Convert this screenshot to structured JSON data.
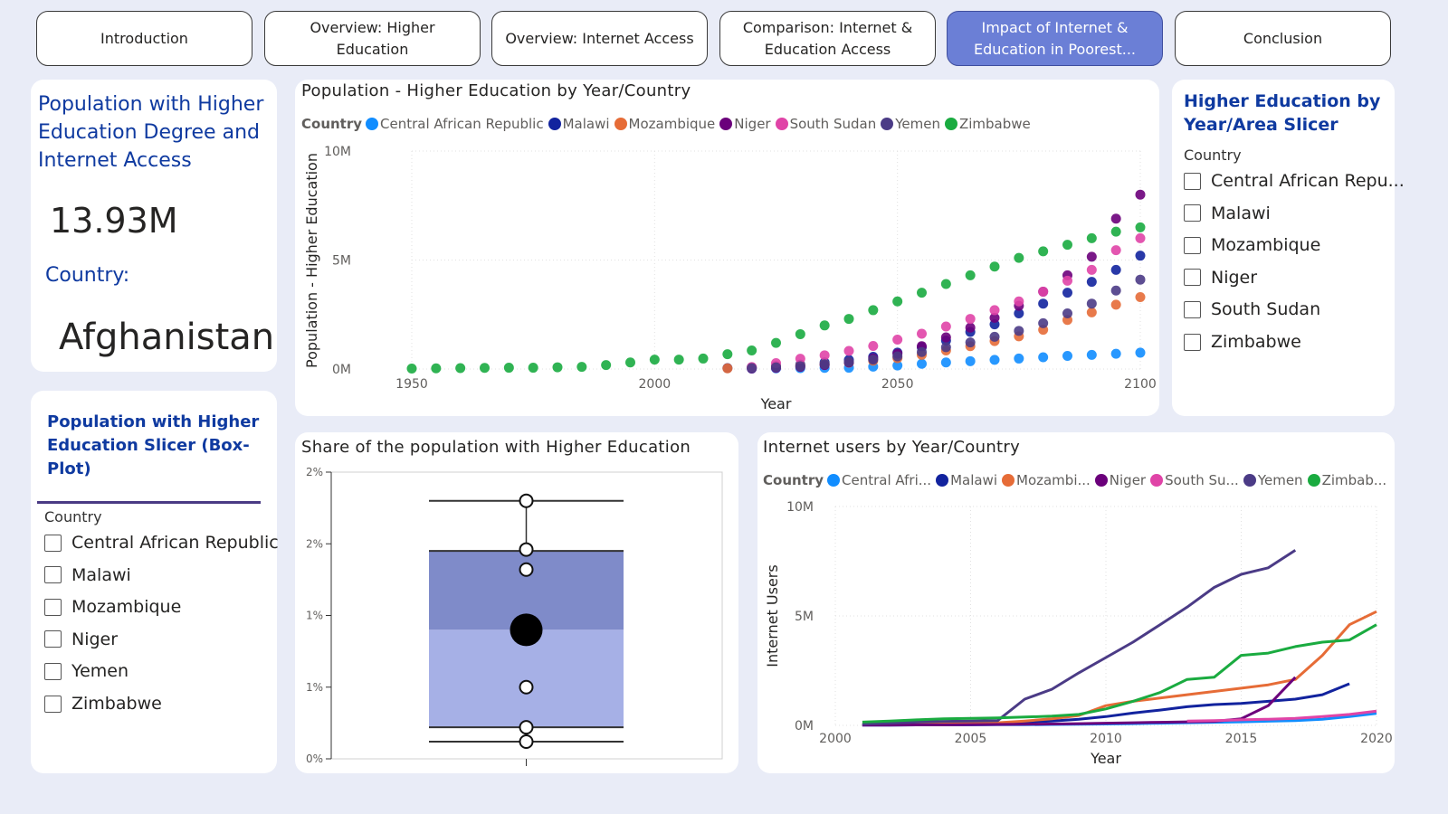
{
  "nav": [
    {
      "label": "Introduction",
      "active": false
    },
    {
      "label": "Overview: Higher Education",
      "active": false
    },
    {
      "label": "Overview: Internet Access",
      "active": false
    },
    {
      "label": "Comparison: Internet & Education Access",
      "active": false
    },
    {
      "label": "Impact of Internet & Education in Poorest...",
      "active": true
    },
    {
      "label": "Conclusion",
      "active": false
    }
  ],
  "kpi": {
    "title": "Population with Higher Education Degree and Internet Access",
    "value": "13.93M",
    "country_label": "Country:",
    "country": "Afghanistan"
  },
  "slicer_boxplot": {
    "title": "Population with Higher Education Slicer (Box-Plot)",
    "header": "Country",
    "items": [
      "Central African Republic",
      "Malawi",
      "Mozambique",
      "Niger",
      "Yemen",
      "Zimbabwe"
    ]
  },
  "slicer_area": {
    "title": "Higher Education by Year/Area Slicer",
    "header": "Country",
    "items": [
      "Central African Repu...",
      "Malawi",
      "Mozambique",
      "Niger",
      "South Sudan",
      "Zimbabwe"
    ]
  },
  "colors": {
    "Central African Republic": "#118dff",
    "Malawi": "#12239e",
    "Mozambique": "#e66c37",
    "Niger": "#6b007b",
    "South Sudan": "#e044a7",
    "Yemen": "#4b3b86",
    "Zimbabwe": "#1aab40",
    "box_upper": "#7f8bc9",
    "box_lower": "#a6b0e6",
    "active_nav": "#6b7fd6",
    "title_blue": "#0f3aa0"
  },
  "chart_data": [
    {
      "id": "scatter",
      "type": "scatter",
      "title": "Population - Higher Education by Year/Country",
      "legend_title": "Country",
      "legend": [
        "Central African Republic",
        "Malawi",
        "Mozambique",
        "Niger",
        "South Sudan",
        "Yemen",
        "Zimbabwe"
      ],
      "xlabel": "Year",
      "ylabel": "Population - Higher Education",
      "xlim": [
        1950,
        2100
      ],
      "ylim": [
        0,
        10000000
      ],
      "xticks": [
        "1950",
        "2000",
        "2050",
        "2100"
      ],
      "yticks": [
        "0M",
        "5M",
        "10M"
      ],
      "x": [
        1950,
        1955,
        1960,
        1965,
        1970,
        1975,
        1980,
        1985,
        1990,
        1995,
        2000,
        2005,
        2010,
        2015,
        2020,
        2025,
        2030,
        2035,
        2040,
        2045,
        2050,
        2055,
        2060,
        2065,
        2070,
        2075,
        2080,
        2085,
        2090,
        2095,
        2100
      ],
      "series": [
        {
          "name": "Central African Republic",
          "values": [
            null,
            null,
            null,
            null,
            null,
            null,
            null,
            null,
            null,
            null,
            null,
            null,
            null,
            null,
            20000,
            30000,
            40000,
            50000,
            60000,
            110000,
            160000,
            240000,
            300000,
            360000,
            420000,
            480000,
            540000,
            600000,
            650000,
            700000,
            750000
          ]
        },
        {
          "name": "Malawi",
          "values": [
            null,
            null,
            null,
            null,
            null,
            null,
            null,
            null,
            null,
            null,
            null,
            null,
            null,
            40000,
            80000,
            130000,
            200000,
            300000,
            420000,
            560000,
            750000,
            1000000,
            1300000,
            1700000,
            2050000,
            2550000,
            3000000,
            3500000,
            4000000,
            4550000,
            5200000
          ]
        },
        {
          "name": "Mozambique",
          "values": [
            null,
            null,
            null,
            null,
            null,
            null,
            null,
            null,
            null,
            null,
            null,
            null,
            null,
            30000,
            60000,
            100000,
            150000,
            220000,
            290000,
            380000,
            500000,
            650000,
            850000,
            1050000,
            1280000,
            1500000,
            1800000,
            2250000,
            2600000,
            2950000,
            3300000
          ]
        },
        {
          "name": "Niger",
          "values": [
            null,
            null,
            null,
            null,
            null,
            null,
            null,
            null,
            null,
            null,
            null,
            null,
            null,
            null,
            20000,
            50000,
            100000,
            180000,
            300000,
            480000,
            700000,
            1050000,
            1450000,
            1900000,
            2350000,
            2900000,
            3550000,
            4300000,
            5150000,
            6900000,
            8000000
          ]
        },
        {
          "name": "South Sudan",
          "values": [
            null,
            null,
            null,
            null,
            null,
            null,
            null,
            null,
            null,
            null,
            null,
            null,
            null,
            null,
            90000,
            270000,
            470000,
            630000,
            830000,
            1060000,
            1350000,
            1620000,
            1950000,
            2300000,
            2700000,
            3100000,
            3550000,
            4050000,
            4550000,
            5450000,
            6000000
          ]
        },
        {
          "name": "Yemen",
          "values": [
            null,
            null,
            null,
            null,
            null,
            null,
            null,
            null,
            null,
            null,
            null,
            null,
            null,
            null,
            40000,
            80000,
            130000,
            220000,
            320000,
            430000,
            580000,
            780000,
            1000000,
            1220000,
            1480000,
            1750000,
            2100000,
            2550000,
            3000000,
            3600000,
            4100000
          ]
        },
        {
          "name": "Zimbabwe",
          "values": [
            20000,
            30000,
            40000,
            50000,
            60000,
            60000,
            80000,
            100000,
            180000,
            300000,
            430000,
            430000,
            480000,
            680000,
            850000,
            1200000,
            1600000,
            2000000,
            2300000,
            2700000,
            3100000,
            3500000,
            3900000,
            4300000,
            4700000,
            5100000,
            5400000,
            5700000,
            6000000,
            6300000,
            6500000
          ]
        }
      ]
    },
    {
      "id": "boxplot",
      "type": "box",
      "title": "Share of the population with Higher Education",
      "yticks": [
        "0%",
        "1%",
        "1%",
        "2%",
        "2%"
      ],
      "ylim": [
        0,
        2
      ],
      "whisker_high": 1.8,
      "q3": 1.45,
      "median": 0.9,
      "q1": 0.22,
      "whisker_low": 0.12,
      "mean": 0.9,
      "points": [
        1.8,
        1.46,
        1.32,
        0.5,
        0.22,
        0.12
      ]
    },
    {
      "id": "line",
      "type": "line",
      "title": "Internet users by Year/Country",
      "legend_title": "Country",
      "legend": [
        "Central Afri...",
        "Malawi",
        "Mozambi...",
        "Niger",
        "South Su...",
        "Yemen",
        "Zimbab..."
      ],
      "xlabel": "Year",
      "ylabel": "Internet Users",
      "xlim": [
        2000,
        2020
      ],
      "ylim": [
        0,
        10000000
      ],
      "xticks": [
        "2000",
        "2005",
        "2010",
        "2015",
        "2020"
      ],
      "yticks": [
        "0M",
        "5M",
        "10M"
      ],
      "x": [
        2001,
        2002,
        2003,
        2004,
        2005,
        2006,
        2007,
        2008,
        2009,
        2010,
        2011,
        2012,
        2013,
        2014,
        2015,
        2016,
        2017,
        2018,
        2019,
        2020
      ],
      "series": [
        {
          "name": "Central African Republic",
          "values": [
            10000,
            10000,
            20000,
            20000,
            20000,
            30000,
            30000,
            40000,
            50000,
            60000,
            80000,
            100000,
            120000,
            140000,
            160000,
            190000,
            220000,
            280000,
            400000,
            550000
          ]
        },
        {
          "name": "Malawi",
          "values": [
            20000,
            30000,
            40000,
            60000,
            80000,
            100000,
            150000,
            200000,
            280000,
            400000,
            560000,
            700000,
            850000,
            950000,
            1000000,
            1100000,
            1200000,
            1400000,
            1900000,
            null
          ]
        },
        {
          "name": "Mozambique",
          "values": [
            30000,
            50000,
            60000,
            80000,
            100000,
            120000,
            200000,
            300000,
            450000,
            900000,
            1100000,
            1250000,
            1400000,
            1550000,
            1700000,
            1850000,
            2100000,
            3200000,
            4600000,
            5200000
          ]
        },
        {
          "name": "Niger",
          "values": [
            10000,
            10000,
            20000,
            20000,
            30000,
            40000,
            50000,
            60000,
            80000,
            100000,
            120000,
            140000,
            160000,
            180000,
            300000,
            900000,
            2200000,
            null,
            null,
            null
          ]
        },
        {
          "name": "South Sudan",
          "values": [
            null,
            null,
            null,
            null,
            null,
            null,
            null,
            null,
            null,
            null,
            null,
            null,
            200000,
            220000,
            250000,
            280000,
            320000,
            400000,
            500000,
            650000
          ]
        },
        {
          "name": "Yemen",
          "values": [
            50000,
            100000,
            150000,
            180000,
            200000,
            220000,
            1200000,
            1650000,
            2400000,
            3100000,
            3800000,
            4600000,
            5400000,
            6300000,
            6900000,
            7200000,
            8000000,
            null,
            null,
            null
          ]
        },
        {
          "name": "Zimbabwe",
          "values": [
            150000,
            200000,
            250000,
            300000,
            320000,
            340000,
            380000,
            420000,
            500000,
            750000,
            1100000,
            1500000,
            2100000,
            2200000,
            3200000,
            3300000,
            3600000,
            3800000,
            3900000,
            4600000
          ]
        }
      ]
    }
  ]
}
